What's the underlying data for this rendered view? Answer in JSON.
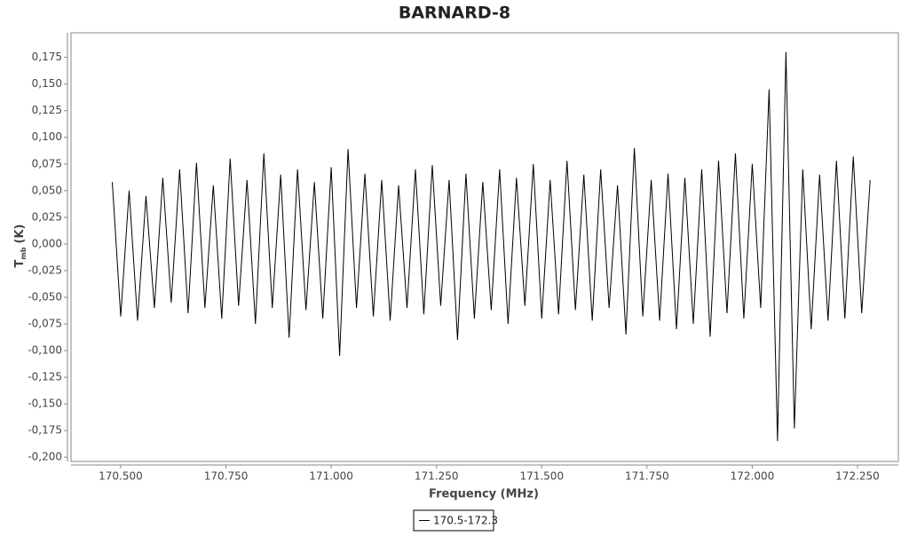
{
  "chart_data": {
    "type": "line",
    "title": "BARNARD-8",
    "x_label": "Frequency (MHz)",
    "y_label": {
      "symbol": "T",
      "subscript": "mb",
      "unit": "(K)"
    },
    "xlim": [
      170.382,
      172.347
    ],
    "ylim": [
      -0.204,
      0.198
    ],
    "xticks": [
      {
        "value": 170.5,
        "label": "170.500"
      },
      {
        "value": 170.75,
        "label": "170.750"
      },
      {
        "value": 171.0,
        "label": "171.000"
      },
      {
        "value": 171.25,
        "label": "171.250"
      },
      {
        "value": 171.5,
        "label": "171.500"
      },
      {
        "value": 171.75,
        "label": "171.750"
      },
      {
        "value": 172.0,
        "label": "172.000"
      },
      {
        "value": 172.25,
        "label": "172.250"
      }
    ],
    "yticks": [
      {
        "value": 0.175,
        "label": "0,175"
      },
      {
        "value": 0.15,
        "label": "0,150"
      },
      {
        "value": 0.125,
        "label": "0,125"
      },
      {
        "value": 0.1,
        "label": "0,100"
      },
      {
        "value": 0.075,
        "label": "0,075"
      },
      {
        "value": 0.05,
        "label": "0,050"
      },
      {
        "value": 0.025,
        "label": "0,025"
      },
      {
        "value": 0,
        "label": "0,000"
      },
      {
        "value": -0.025,
        "label": "-0,025"
      },
      {
        "value": -0.05,
        "label": "-0,050"
      },
      {
        "value": -0.075,
        "label": "-0,075"
      },
      {
        "value": -0.1,
        "label": "-0,100"
      },
      {
        "value": -0.125,
        "label": "-0,125"
      },
      {
        "value": -0.15,
        "label": "-0,150"
      },
      {
        "value": -0.175,
        "label": "-0,175"
      },
      {
        "value": -0.2,
        "label": "-0,200"
      }
    ],
    "x": [
      170.48,
      170.5,
      170.52,
      170.54,
      170.56,
      170.58,
      170.6,
      170.62,
      170.64,
      170.66,
      170.68,
      170.7,
      170.72,
      170.74,
      170.76,
      170.78,
      170.8,
      170.82,
      170.84,
      170.86,
      170.88,
      170.9,
      170.92,
      170.94,
      170.96,
      170.98,
      171.0,
      171.02,
      171.04,
      171.06,
      171.08,
      171.1,
      171.12,
      171.14,
      171.16,
      171.18,
      171.2,
      171.22,
      171.24,
      171.26,
      171.28,
      171.3,
      171.32,
      171.34,
      171.36,
      171.38,
      171.4,
      171.42,
      171.44,
      171.46,
      171.48,
      171.5,
      171.52,
      171.54,
      171.56,
      171.58,
      171.6,
      171.62,
      171.64,
      171.66,
      171.68,
      171.7,
      171.72,
      171.74,
      171.76,
      171.78,
      171.8,
      171.82,
      171.84,
      171.86,
      171.88,
      171.9,
      171.92,
      171.94,
      171.96,
      171.98,
      172.0,
      172.02,
      172.04,
      172.06,
      172.08,
      172.1,
      172.12,
      172.14,
      172.16,
      172.18,
      172.2,
      172.22,
      172.24,
      172.26,
      172.28
    ],
    "series": [
      {
        "name": "170.5-172.3",
        "color": "#000000",
        "values": [
          0.058,
          -0.068,
          0.05,
          -0.072,
          0.045,
          -0.06,
          0.062,
          -0.055,
          0.07,
          -0.065,
          0.076,
          -0.06,
          0.055,
          -0.07,
          0.08,
          -0.058,
          0.06,
          -0.075,
          0.085,
          -0.06,
          0.065,
          -0.088,
          0.07,
          -0.062,
          0.058,
          -0.07,
          0.072,
          -0.105,
          0.089,
          -0.06,
          0.066,
          -0.068,
          0.06,
          -0.072,
          0.055,
          -0.06,
          0.07,
          -0.066,
          0.074,
          -0.058,
          0.06,
          -0.09,
          0.066,
          -0.07,
          0.058,
          -0.062,
          0.07,
          -0.075,
          0.062,
          -0.058,
          0.075,
          -0.07,
          0.06,
          -0.066,
          0.078,
          -0.062,
          0.065,
          -0.072,
          0.07,
          -0.06,
          0.055,
          -0.085,
          0.09,
          -0.068,
          0.06,
          -0.072,
          0.066,
          -0.08,
          0.062,
          -0.075,
          0.07,
          -0.087,
          0.078,
          -0.065,
          0.085,
          -0.07,
          0.075,
          -0.06,
          0.145,
          -0.185,
          0.18,
          -0.173,
          0.07,
          -0.08,
          0.065,
          -0.072,
          0.078,
          -0.07,
          0.082,
          -0.065,
          0.06
        ]
      }
    ]
  }
}
